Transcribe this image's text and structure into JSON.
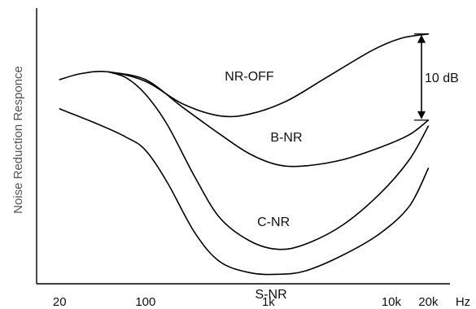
{
  "chart_data": {
    "type": "line",
    "ylabel": "Noise Reduction Responce",
    "xunit": "Hz",
    "xscale": "log",
    "xlim": [
      13,
      30000
    ],
    "ylim": [
      -29,
      3
    ],
    "x_ticks": [
      {
        "label": "20",
        "value": 20
      },
      {
        "label": "100",
        "value": 100
      },
      {
        "label": "1k",
        "value": 1000
      },
      {
        "label": "10k",
        "value": 10000
      },
      {
        "label": "20k",
        "value": 20000
      }
    ],
    "scale_bar": {
      "label": "10 dB",
      "from": 0,
      "to": -10
    },
    "series": [
      {
        "name": "NR-OFF",
        "points": [
          [
            20,
            -5.3
          ],
          [
            30,
            -4.6
          ],
          [
            50,
            -4.4
          ],
          [
            100,
            -5.5
          ],
          [
            200,
            -8.1
          ],
          [
            400,
            -9.5
          ],
          [
            700,
            -9.3
          ],
          [
            1400,
            -7.8
          ],
          [
            3000,
            -5.0
          ],
          [
            7000,
            -1.9
          ],
          [
            12000,
            -0.5
          ],
          [
            20000,
            0.0
          ]
        ]
      },
      {
        "name": "B-NR",
        "points": [
          [
            50,
            -4.4
          ],
          [
            100,
            -5.3
          ],
          [
            200,
            -8.5
          ],
          [
            400,
            -11.6
          ],
          [
            700,
            -13.9
          ],
          [
            1200,
            -15.2
          ],
          [
            2000,
            -15.3
          ],
          [
            4000,
            -14.6
          ],
          [
            8000,
            -13.2
          ],
          [
            14000,
            -11.7
          ],
          [
            20000,
            -10.0
          ]
        ]
      },
      {
        "name": "C-NR",
        "points": [
          [
            50,
            -4.4
          ],
          [
            70,
            -5.1
          ],
          [
            100,
            -7.0
          ],
          [
            150,
            -10.5
          ],
          [
            250,
            -16.5
          ],
          [
            400,
            -21.3
          ],
          [
            700,
            -24.0
          ],
          [
            1200,
            -25.0
          ],
          [
            2000,
            -24.4
          ],
          [
            4000,
            -22.2
          ],
          [
            8000,
            -18.6
          ],
          [
            14000,
            -14.6
          ],
          [
            20000,
            -10.7
          ]
        ]
      },
      {
        "name": "S-NR",
        "points": [
          [
            20,
            -8.7
          ],
          [
            40,
            -10.4
          ],
          [
            70,
            -12.0
          ],
          [
            100,
            -13.5
          ],
          [
            150,
            -17.2
          ],
          [
            250,
            -23.0
          ],
          [
            400,
            -26.4
          ],
          [
            700,
            -27.7
          ],
          [
            1200,
            -27.9
          ],
          [
            2000,
            -27.5
          ],
          [
            4000,
            -25.7
          ],
          [
            8000,
            -23.2
          ],
          [
            14000,
            -20.0
          ],
          [
            20000,
            -15.6
          ]
        ]
      }
    ],
    "labels": [
      {
        "text": "NR-OFF",
        "x": 700,
        "y": -5.4
      },
      {
        "text": "B-NR",
        "x": 1400,
        "y": -12.5
      },
      {
        "text": "C-NR",
        "x": 1100,
        "y": -22.3
      },
      {
        "text": "S-NR",
        "x": 1050,
        "y": -30.7
      }
    ]
  }
}
